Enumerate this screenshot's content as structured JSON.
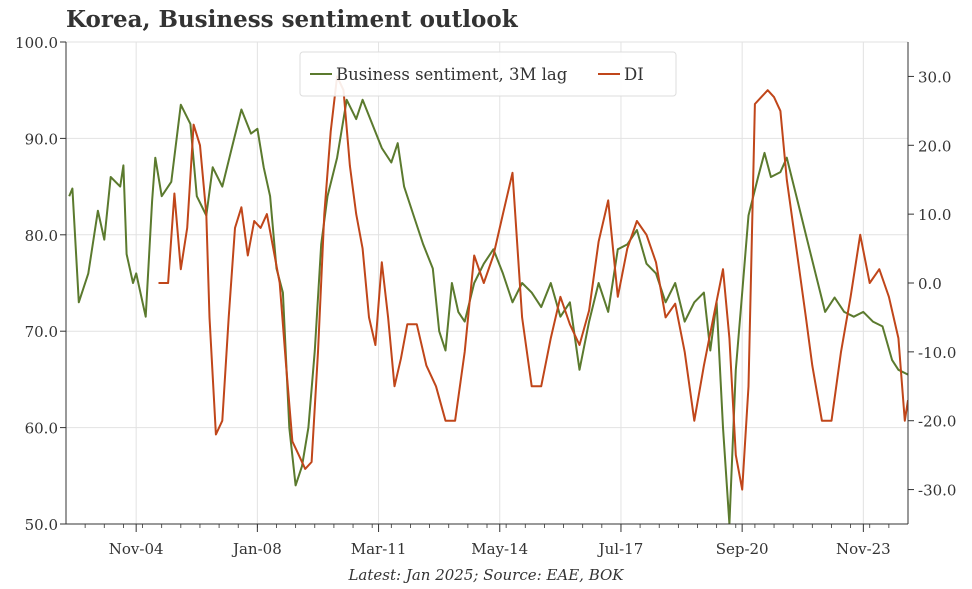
{
  "chart_data": {
    "type": "line",
    "title": "Korea, Business sentiment outlook",
    "source": "Latest: Jan 2025; Source: EAE, BOK",
    "x_range": [
      "2003-01",
      "2025-01"
    ],
    "x_ticks": [
      "Nov-04",
      "Jan-08",
      "Mar-11",
      "May-14",
      "Jul-17",
      "Sep-20",
      "Nov-23"
    ],
    "y_left": {
      "range": [
        50,
        100
      ],
      "ticks": [
        "50.0",
        "60.0",
        "70.0",
        "80.0",
        "90.0",
        "100.0"
      ]
    },
    "y_right": {
      "range": [
        -35,
        35
      ],
      "ticks": [
        "-30.0",
        "-20.0",
        "-10.0",
        "0.0",
        "10.0",
        "20.0",
        "30.0"
      ]
    },
    "grid": true,
    "legend": {
      "position": "top-center",
      "entries": [
        "Business sentiment, 3M lag",
        "DI"
      ]
    },
    "series": [
      {
        "name": "Business sentiment, 3M lag",
        "axis": "left",
        "color": "#5b7a2e",
        "points": [
          [
            "2003-02",
            84.0
          ],
          [
            "2003-03",
            84.8
          ],
          [
            "2003-05",
            73.0
          ],
          [
            "2003-08",
            76.0
          ],
          [
            "2003-11",
            82.5
          ],
          [
            "2004-01",
            79.5
          ],
          [
            "2004-03",
            86.0
          ],
          [
            "2004-06",
            85.0
          ],
          [
            "2004-07",
            87.2
          ],
          [
            "2004-08",
            78.0
          ],
          [
            "2004-10",
            75.0
          ],
          [
            "2004-11",
            76.0
          ],
          [
            "2005-02",
            71.5
          ],
          [
            "2005-04",
            83.5
          ],
          [
            "2005-05",
            88.0
          ],
          [
            "2005-07",
            84.0
          ],
          [
            "2005-10",
            85.5
          ],
          [
            "2006-01",
            93.5
          ],
          [
            "2006-04",
            91.5
          ],
          [
            "2006-06",
            84.0
          ],
          [
            "2006-09",
            82.0
          ],
          [
            "2006-11",
            87.0
          ],
          [
            "2007-02",
            85.0
          ],
          [
            "2007-05",
            89.0
          ],
          [
            "2007-08",
            93.0
          ],
          [
            "2007-11",
            90.5
          ],
          [
            "2008-01",
            91.0
          ],
          [
            "2008-03",
            87.0
          ],
          [
            "2008-05",
            84.0
          ],
          [
            "2008-07",
            76.5
          ],
          [
            "2008-09",
            74.0
          ],
          [
            "2008-11",
            60.0
          ],
          [
            "2009-01",
            54.0
          ],
          [
            "2009-03",
            56.0
          ],
          [
            "2009-05",
            60.0
          ],
          [
            "2009-07",
            68.0
          ],
          [
            "2009-09",
            79.0
          ],
          [
            "2009-11",
            84.0
          ],
          [
            "2010-02",
            88.0
          ],
          [
            "2010-05",
            94.0
          ],
          [
            "2010-08",
            92.0
          ],
          [
            "2010-10",
            94.0
          ],
          [
            "2011-01",
            91.5
          ],
          [
            "2011-04",
            89.0
          ],
          [
            "2011-07",
            87.5
          ],
          [
            "2011-09",
            89.5
          ],
          [
            "2011-11",
            85.0
          ],
          [
            "2012-02",
            82.0
          ],
          [
            "2012-05",
            79.0
          ],
          [
            "2012-08",
            76.5
          ],
          [
            "2012-10",
            70.0
          ],
          [
            "2012-12",
            68.0
          ],
          [
            "2013-02",
            75.0
          ],
          [
            "2013-04",
            72.0
          ],
          [
            "2013-06",
            71.0
          ],
          [
            "2013-09",
            75.0
          ],
          [
            "2013-12",
            77.0
          ],
          [
            "2014-03",
            78.5
          ],
          [
            "2014-06",
            76.0
          ],
          [
            "2014-09",
            73.0
          ],
          [
            "2014-12",
            75.0
          ],
          [
            "2015-03",
            74.0
          ],
          [
            "2015-06",
            72.5
          ],
          [
            "2015-09",
            75.0
          ],
          [
            "2015-12",
            71.5
          ],
          [
            "2016-03",
            73.0
          ],
          [
            "2016-06",
            66.0
          ],
          [
            "2016-09",
            71.0
          ],
          [
            "2016-12",
            75.0
          ],
          [
            "2017-03",
            72.0
          ],
          [
            "2017-06",
            78.5
          ],
          [
            "2017-09",
            79.0
          ],
          [
            "2017-12",
            80.5
          ],
          [
            "2018-03",
            77.0
          ],
          [
            "2018-06",
            76.0
          ],
          [
            "2018-09",
            73.0
          ],
          [
            "2018-12",
            75.0
          ],
          [
            "2019-03",
            71.0
          ],
          [
            "2019-06",
            73.0
          ],
          [
            "2019-09",
            74.0
          ],
          [
            "2019-11",
            68.0
          ],
          [
            "2020-01",
            73.0
          ],
          [
            "2020-03",
            60.0
          ],
          [
            "2020-05",
            50.0
          ],
          [
            "2020-07",
            66.0
          ],
          [
            "2020-09",
            74.0
          ],
          [
            "2020-11",
            82.0
          ],
          [
            "2021-02",
            86.0
          ],
          [
            "2021-04",
            88.5
          ],
          [
            "2021-06",
            86.0
          ],
          [
            "2021-09",
            86.5
          ],
          [
            "2021-11",
            88.0
          ],
          [
            "2022-02",
            84.0
          ],
          [
            "2022-05",
            80.0
          ],
          [
            "2022-08",
            76.0
          ],
          [
            "2022-11",
            72.0
          ],
          [
            "2023-02",
            73.5
          ],
          [
            "2023-05",
            72.0
          ],
          [
            "2023-08",
            71.5
          ],
          [
            "2023-11",
            72.0
          ],
          [
            "2024-02",
            71.0
          ],
          [
            "2024-05",
            70.5
          ],
          [
            "2024-08",
            67.0
          ],
          [
            "2024-10",
            66.0
          ],
          [
            "2025-01",
            65.5
          ]
        ]
      },
      {
        "name": "DI",
        "axis": "right",
        "color": "#c0461a",
        "points": [
          [
            "2005-06",
            0.0
          ],
          [
            "2005-09",
            0.0
          ],
          [
            "2005-11",
            13.0
          ],
          [
            "2006-01",
            2.0
          ],
          [
            "2006-03",
            8.0
          ],
          [
            "2006-05",
            23.0
          ],
          [
            "2006-07",
            20.0
          ],
          [
            "2006-09",
            10.0
          ],
          [
            "2006-10",
            -5.0
          ],
          [
            "2006-12",
            -22.0
          ],
          [
            "2007-02",
            -20.0
          ],
          [
            "2007-04",
            -5.0
          ],
          [
            "2007-06",
            8.0
          ],
          [
            "2007-08",
            11.0
          ],
          [
            "2007-10",
            4.0
          ],
          [
            "2007-12",
            9.0
          ],
          [
            "2008-02",
            8.0
          ],
          [
            "2008-04",
            10.0
          ],
          [
            "2008-06",
            5.0
          ],
          [
            "2008-08",
            0.0
          ],
          [
            "2008-10",
            -12.0
          ],
          [
            "2008-12",
            -23.0
          ],
          [
            "2009-02",
            -25.0
          ],
          [
            "2009-04",
            -27.0
          ],
          [
            "2009-06",
            -26.0
          ],
          [
            "2009-08",
            -10.0
          ],
          [
            "2009-10",
            10.0
          ],
          [
            "2009-12",
            22.0
          ],
          [
            "2010-02",
            30.0
          ],
          [
            "2010-04",
            28.0
          ],
          [
            "2010-06",
            17.0
          ],
          [
            "2010-08",
            10.0
          ],
          [
            "2010-10",
            5.0
          ],
          [
            "2010-12",
            -5.0
          ],
          [
            "2011-02",
            -9.0
          ],
          [
            "2011-04",
            3.0
          ],
          [
            "2011-06",
            -5.0
          ],
          [
            "2011-08",
            -15.0
          ],
          [
            "2011-10",
            -11.0
          ],
          [
            "2011-12",
            -6.0
          ],
          [
            "2012-03",
            -6.0
          ],
          [
            "2012-06",
            -12.0
          ],
          [
            "2012-09",
            -15.0
          ],
          [
            "2012-12",
            -20.0
          ],
          [
            "2013-03",
            -20.0
          ],
          [
            "2013-06",
            -10.0
          ],
          [
            "2013-09",
            4.0
          ],
          [
            "2013-12",
            0.0
          ],
          [
            "2014-03",
            4.0
          ],
          [
            "2014-06",
            10.0
          ],
          [
            "2014-09",
            16.0
          ],
          [
            "2014-12",
            -5.0
          ],
          [
            "2015-03",
            -15.0
          ],
          [
            "2015-06",
            -15.0
          ],
          [
            "2015-09",
            -8.0
          ],
          [
            "2015-12",
            -2.0
          ],
          [
            "2016-03",
            -6.0
          ],
          [
            "2016-06",
            -9.0
          ],
          [
            "2016-09",
            -4.0
          ],
          [
            "2016-12",
            6.0
          ],
          [
            "2017-03",
            12.0
          ],
          [
            "2017-06",
            -2.0
          ],
          [
            "2017-09",
            5.0
          ],
          [
            "2017-12",
            9.0
          ],
          [
            "2018-03",
            7.0
          ],
          [
            "2018-06",
            3.0
          ],
          [
            "2018-09",
            -5.0
          ],
          [
            "2018-12",
            -3.0
          ],
          [
            "2019-03",
            -10.0
          ],
          [
            "2019-06",
            -20.0
          ],
          [
            "2019-09",
            -12.0
          ],
          [
            "2019-12",
            -5.0
          ],
          [
            "2020-03",
            2.0
          ],
          [
            "2020-05",
            -8.0
          ],
          [
            "2020-07",
            -25.0
          ],
          [
            "2020-09",
            -30.0
          ],
          [
            "2020-11",
            -15.0
          ],
          [
            "2021-01",
            26.0
          ],
          [
            "2021-03",
            27.0
          ],
          [
            "2021-05",
            28.0
          ],
          [
            "2021-07",
            27.0
          ],
          [
            "2021-09",
            25.0
          ],
          [
            "2021-11",
            15.0
          ],
          [
            "2022-02",
            5.0
          ],
          [
            "2022-05",
            -5.0
          ],
          [
            "2022-07",
            -12.0
          ],
          [
            "2022-10",
            -20.0
          ],
          [
            "2023-01",
            -20.0
          ],
          [
            "2023-04",
            -10.0
          ],
          [
            "2023-07",
            -2.0
          ],
          [
            "2023-10",
            7.0
          ],
          [
            "2024-01",
            0.0
          ],
          [
            "2024-04",
            2.0
          ],
          [
            "2024-07",
            -2.0
          ],
          [
            "2024-10",
            -8.0
          ],
          [
            "2024-12",
            -20.0
          ],
          [
            "2025-01",
            -17.0
          ]
        ]
      }
    ]
  }
}
